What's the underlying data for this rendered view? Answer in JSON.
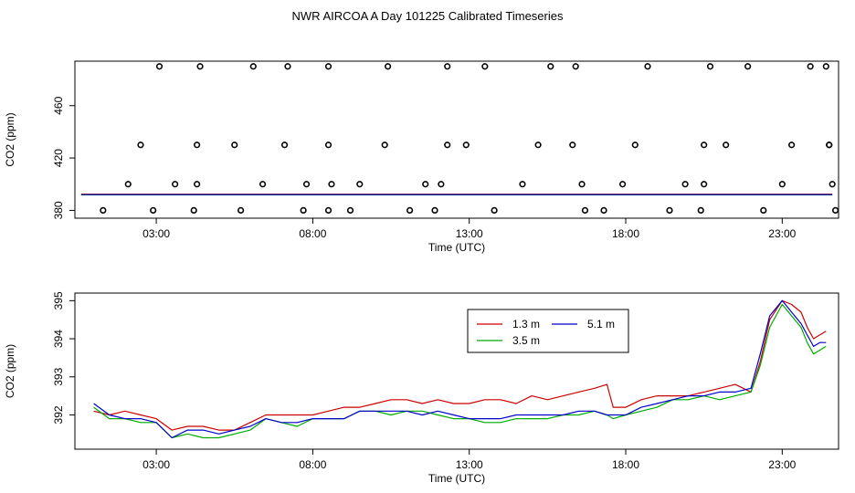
{
  "title": "NWR AIRCOA A  Day 101225  Calibrated Timeseries",
  "chart_data": [
    {
      "id": "top",
      "type": "scatter",
      "xlabel": "Time (UTC)",
      "ylabel": "CO2 (ppm)",
      "xlim": [
        0.4,
        24.8
      ],
      "ylim": [
        374,
        494
      ],
      "xtick_values": [
        3,
        8,
        13,
        18,
        23
      ],
      "xtick_labels": [
        "03:00",
        "08:00",
        "13:00",
        "18:00",
        "23:00"
      ],
      "ytick_values": [
        380,
        420,
        460
      ],
      "ytick_labels": [
        "380",
        "420",
        "460"
      ],
      "points": [
        [
          1.3,
          380
        ],
        [
          2.1,
          400
        ],
        [
          2.5,
          430
        ],
        [
          3.1,
          490
        ],
        [
          2.9,
          380
        ],
        [
          3.6,
          400
        ],
        [
          4.2,
          380
        ],
        [
          4.3,
          400
        ],
        [
          4.3,
          430
        ],
        [
          4.4,
          490
        ],
        [
          5.5,
          430
        ],
        [
          5.7,
          380
        ],
        [
          6.1,
          490
        ],
        [
          6.4,
          400
        ],
        [
          7.1,
          430
        ],
        [
          7.2,
          490
        ],
        [
          7.8,
          400
        ],
        [
          7.7,
          380
        ],
        [
          8.5,
          430
        ],
        [
          8.5,
          490
        ],
        [
          8.5,
          380
        ],
        [
          8.6,
          400
        ],
        [
          9.2,
          380
        ],
        [
          9.5,
          400
        ],
        [
          10.3,
          430
        ],
        [
          10.4,
          490
        ],
        [
          11.1,
          380
        ],
        [
          11.6,
          400
        ],
        [
          11.9,
          380
        ],
        [
          12.1,
          400
        ],
        [
          12.3,
          430
        ],
        [
          12.3,
          490
        ],
        [
          12.9,
          430
        ],
        [
          13.5,
          490
        ],
        [
          13.8,
          380
        ],
        [
          14.7,
          400
        ],
        [
          15.2,
          430
        ],
        [
          15.6,
          490
        ],
        [
          16.3,
          430
        ],
        [
          16.4,
          490
        ],
        [
          16.6,
          400
        ],
        [
          16.7,
          380
        ],
        [
          17.3,
          380
        ],
        [
          17.9,
          400
        ],
        [
          18.3,
          430
        ],
        [
          18.7,
          490
        ],
        [
          19.4,
          380
        ],
        [
          19.9,
          400
        ],
        [
          20.4,
          380
        ],
        [
          20.5,
          400
        ],
        [
          20.5,
          430
        ],
        [
          20.7,
          490
        ],
        [
          21.2,
          430
        ],
        [
          21.9,
          490
        ],
        [
          22.4,
          380
        ],
        [
          23.0,
          400
        ],
        [
          23.3,
          430
        ],
        [
          23.9,
          490
        ],
        [
          24.4,
          490
        ],
        [
          24.5,
          430
        ],
        [
          24.5,
          430
        ],
        [
          24.6,
          400
        ],
        [
          24.7,
          380
        ]
      ],
      "series": [
        {
          "name": "1.3 m",
          "color": "#cc0000",
          "level": 392.3
        },
        {
          "name": "3.5 m",
          "color": "#00aa00",
          "level": 391.9
        },
        {
          "name": "5.1 m",
          "color": "#0000cc",
          "level": 392.0
        }
      ]
    },
    {
      "id": "bottom",
      "type": "line",
      "xlabel": "Time (UTC)",
      "ylabel": "CO2 (ppm)",
      "xlim": [
        0.4,
        24.8
      ],
      "ylim": [
        391.1,
        395.2
      ],
      "xtick_values": [
        3,
        8,
        13,
        18,
        23
      ],
      "xtick_labels": [
        "03:00",
        "08:00",
        "13:00",
        "18:00",
        "23:00"
      ],
      "ytick_values": [
        392,
        393,
        394,
        395
      ],
      "ytick_labels": [
        "392",
        "393",
        "394",
        "395"
      ],
      "legend": {
        "position": "top-center",
        "entries": [
          "1.3 m",
          "3.5 m",
          "5.1 m"
        ]
      },
      "series": [
        {
          "name": "1.3 m",
          "color": "#cc0000",
          "x": [
            1.0,
            1.5,
            2.0,
            2.5,
            3.0,
            3.5,
            4.0,
            4.5,
            5.0,
            5.5,
            6.0,
            6.5,
            7.0,
            7.5,
            8.0,
            8.5,
            9.0,
            9.5,
            10.0,
            10.5,
            11.0,
            11.5,
            12.0,
            12.5,
            13.0,
            13.5,
            14.0,
            14.5,
            15.0,
            15.5,
            16.0,
            16.5,
            17.0,
            17.4,
            17.6,
            18.0,
            18.5,
            19.0,
            19.5,
            20.0,
            20.5,
            21.0,
            21.5,
            22.0,
            22.3,
            22.6,
            23.0,
            23.3,
            23.6,
            23.8,
            24.0,
            24.2,
            24.4
          ],
          "y": [
            392.1,
            392.0,
            392.1,
            392.0,
            391.9,
            391.6,
            391.7,
            391.7,
            391.6,
            391.6,
            391.8,
            392.0,
            392.0,
            392.0,
            392.0,
            392.1,
            392.2,
            392.2,
            392.3,
            392.4,
            392.4,
            392.3,
            392.4,
            392.3,
            392.3,
            392.4,
            392.4,
            392.3,
            392.5,
            392.4,
            392.5,
            392.6,
            392.7,
            392.8,
            392.2,
            392.2,
            392.4,
            392.5,
            392.5,
            392.5,
            392.6,
            392.7,
            392.8,
            392.6,
            393.4,
            394.5,
            395.0,
            394.9,
            394.7,
            394.3,
            394.0,
            394.1,
            394.2
          ]
        },
        {
          "name": "3.5 m",
          "color": "#00aa00",
          "x": [
            1.0,
            1.5,
            2.0,
            2.5,
            3.0,
            3.5,
            4.0,
            4.5,
            5.0,
            5.5,
            6.0,
            6.5,
            7.0,
            7.5,
            8.0,
            8.5,
            9.0,
            9.5,
            10.0,
            10.5,
            11.0,
            11.5,
            12.0,
            12.5,
            13.0,
            13.5,
            14.0,
            14.5,
            15.0,
            15.5,
            16.0,
            16.5,
            17.0,
            17.4,
            17.6,
            18.0,
            18.5,
            19.0,
            19.5,
            20.0,
            20.5,
            21.0,
            21.5,
            22.0,
            22.3,
            22.6,
            23.0,
            23.3,
            23.6,
            23.8,
            24.0,
            24.2,
            24.4
          ],
          "y": [
            392.2,
            391.9,
            391.9,
            391.8,
            391.8,
            391.4,
            391.5,
            391.4,
            391.4,
            391.5,
            391.6,
            391.9,
            391.8,
            391.7,
            391.9,
            391.9,
            391.9,
            392.1,
            392.1,
            392.0,
            392.1,
            392.1,
            392.0,
            391.9,
            391.9,
            391.8,
            391.8,
            391.9,
            391.9,
            391.9,
            392.0,
            392.0,
            392.1,
            392.0,
            391.9,
            392.0,
            392.1,
            392.2,
            392.4,
            392.4,
            392.5,
            392.4,
            392.5,
            392.6,
            393.3,
            394.3,
            394.9,
            394.6,
            394.3,
            393.9,
            393.6,
            393.7,
            393.8
          ]
        },
        {
          "name": "5.1 m",
          "color": "#0000cc",
          "x": [
            1.0,
            1.5,
            2.0,
            2.5,
            3.0,
            3.5,
            4.0,
            4.5,
            5.0,
            5.5,
            6.0,
            6.5,
            7.0,
            7.5,
            8.0,
            8.5,
            9.0,
            9.5,
            10.0,
            10.5,
            11.0,
            11.5,
            12.0,
            12.5,
            13.0,
            13.5,
            14.0,
            14.5,
            15.0,
            15.5,
            16.0,
            16.5,
            17.0,
            17.4,
            17.6,
            18.0,
            18.5,
            19.0,
            19.5,
            20.0,
            20.5,
            21.0,
            21.5,
            22.0,
            22.3,
            22.6,
            23.0,
            23.3,
            23.6,
            23.8,
            24.0,
            24.2,
            24.4
          ],
          "y": [
            392.3,
            392.0,
            391.9,
            391.9,
            391.8,
            391.4,
            391.6,
            391.6,
            391.5,
            391.6,
            391.7,
            391.9,
            391.8,
            391.8,
            391.9,
            391.9,
            391.9,
            392.1,
            392.1,
            392.1,
            392.1,
            392.0,
            392.1,
            392.0,
            391.9,
            391.9,
            391.9,
            392.0,
            392.0,
            392.0,
            392.0,
            392.1,
            392.1,
            392.0,
            392.0,
            392.0,
            392.2,
            392.3,
            392.4,
            392.5,
            392.5,
            392.6,
            392.6,
            392.7,
            393.6,
            394.6,
            395.0,
            394.7,
            394.4,
            394.1,
            393.8,
            393.9,
            393.9
          ]
        }
      ]
    }
  ]
}
